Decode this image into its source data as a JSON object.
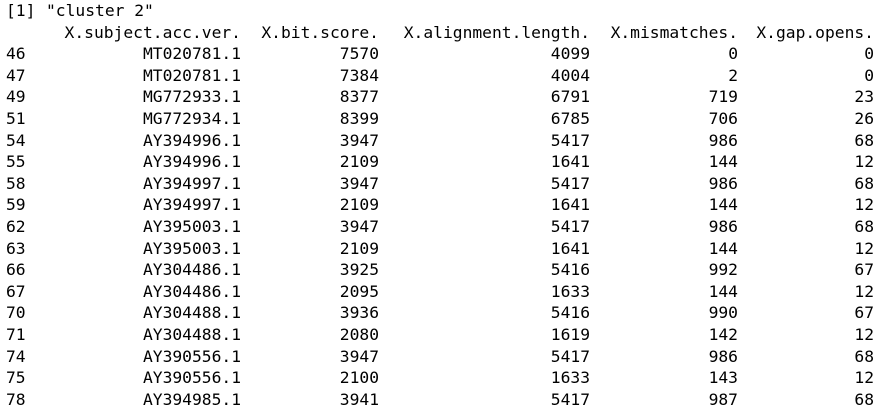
{
  "console": {
    "print_prefix": "[1]",
    "print_value": "\"cluster 2\"",
    "columns": [
      "X.subject.acc.ver.",
      "X.bit.score.",
      "X.alignment.length.",
      "X.mismatches.",
      "X.gap.opens."
    ],
    "rows": [
      {
        "idx": "46",
        "acc": "MT020781.1",
        "bit": "7570",
        "aln": "4099",
        "mis": "0",
        "gap": "0"
      },
      {
        "idx": "47",
        "acc": "MT020781.1",
        "bit": "7384",
        "aln": "4004",
        "mis": "2",
        "gap": "0"
      },
      {
        "idx": "49",
        "acc": "MG772933.1",
        "bit": "8377",
        "aln": "6791",
        "mis": "719",
        "gap": "23"
      },
      {
        "idx": "51",
        "acc": "MG772934.1",
        "bit": "8399",
        "aln": "6785",
        "mis": "706",
        "gap": "26"
      },
      {
        "idx": "54",
        "acc": "AY394996.1",
        "bit": "3947",
        "aln": "5417",
        "mis": "986",
        "gap": "68"
      },
      {
        "idx": "55",
        "acc": "AY394996.1",
        "bit": "2109",
        "aln": "1641",
        "mis": "144",
        "gap": "12"
      },
      {
        "idx": "58",
        "acc": "AY394997.1",
        "bit": "3947",
        "aln": "5417",
        "mis": "986",
        "gap": "68"
      },
      {
        "idx": "59",
        "acc": "AY394997.1",
        "bit": "2109",
        "aln": "1641",
        "mis": "144",
        "gap": "12"
      },
      {
        "idx": "62",
        "acc": "AY395003.1",
        "bit": "3947",
        "aln": "5417",
        "mis": "986",
        "gap": "68"
      },
      {
        "idx": "63",
        "acc": "AY395003.1",
        "bit": "2109",
        "aln": "1641",
        "mis": "144",
        "gap": "12"
      },
      {
        "idx": "66",
        "acc": "AY304486.1",
        "bit": "3925",
        "aln": "5416",
        "mis": "992",
        "gap": "67"
      },
      {
        "idx": "67",
        "acc": "AY304486.1",
        "bit": "2095",
        "aln": "1633",
        "mis": "144",
        "gap": "12"
      },
      {
        "idx": "70",
        "acc": "AY304488.1",
        "bit": "3936",
        "aln": "5416",
        "mis": "990",
        "gap": "67"
      },
      {
        "idx": "71",
        "acc": "AY304488.1",
        "bit": "2080",
        "aln": "1619",
        "mis": "142",
        "gap": "12"
      },
      {
        "idx": "74",
        "acc": "AY390556.1",
        "bit": "3947",
        "aln": "5417",
        "mis": "986",
        "gap": "68"
      },
      {
        "idx": "75",
        "acc": "AY390556.1",
        "bit": "2100",
        "aln": "1633",
        "mis": "143",
        "gap": "12"
      },
      {
        "idx": "78",
        "acc": "AY394985.1",
        "bit": "3941",
        "aln": "5417",
        "mis": "987",
        "gap": "68"
      }
    ]
  }
}
